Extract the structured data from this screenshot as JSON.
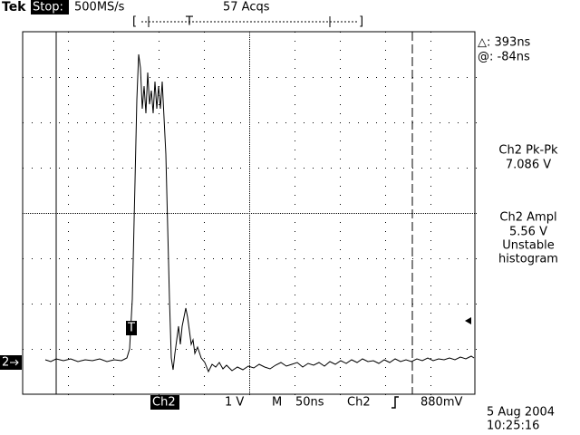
{
  "header": {
    "brand": "Tek",
    "status": "Stop:",
    "sample_rate": "500MS/s",
    "acquisitions": "57 Acqs",
    "trigger_position": "T"
  },
  "readouts": {
    "cursor_delta": "△: 393ns",
    "cursor_at": "@: -84ns",
    "pk_pk_label": "Ch2 Pk-Pk",
    "pk_pk_value": "7.086 V",
    "ampl_label": "Ch2 Ampl",
    "ampl_value": "5.56 V",
    "ampl_note_1": "Unstable",
    "ampl_note_2": "histogram"
  },
  "markers": {
    "channel": "2",
    "trigger": "T"
  },
  "footer": {
    "channel": "Ch2",
    "volts_per_div": "1 V",
    "timebase_label": "M",
    "timebase": "50ns",
    "trigger_source": "Ch2",
    "trigger_level": "880mV",
    "date": "5 Aug 2004",
    "time": "10:25:16"
  }
}
